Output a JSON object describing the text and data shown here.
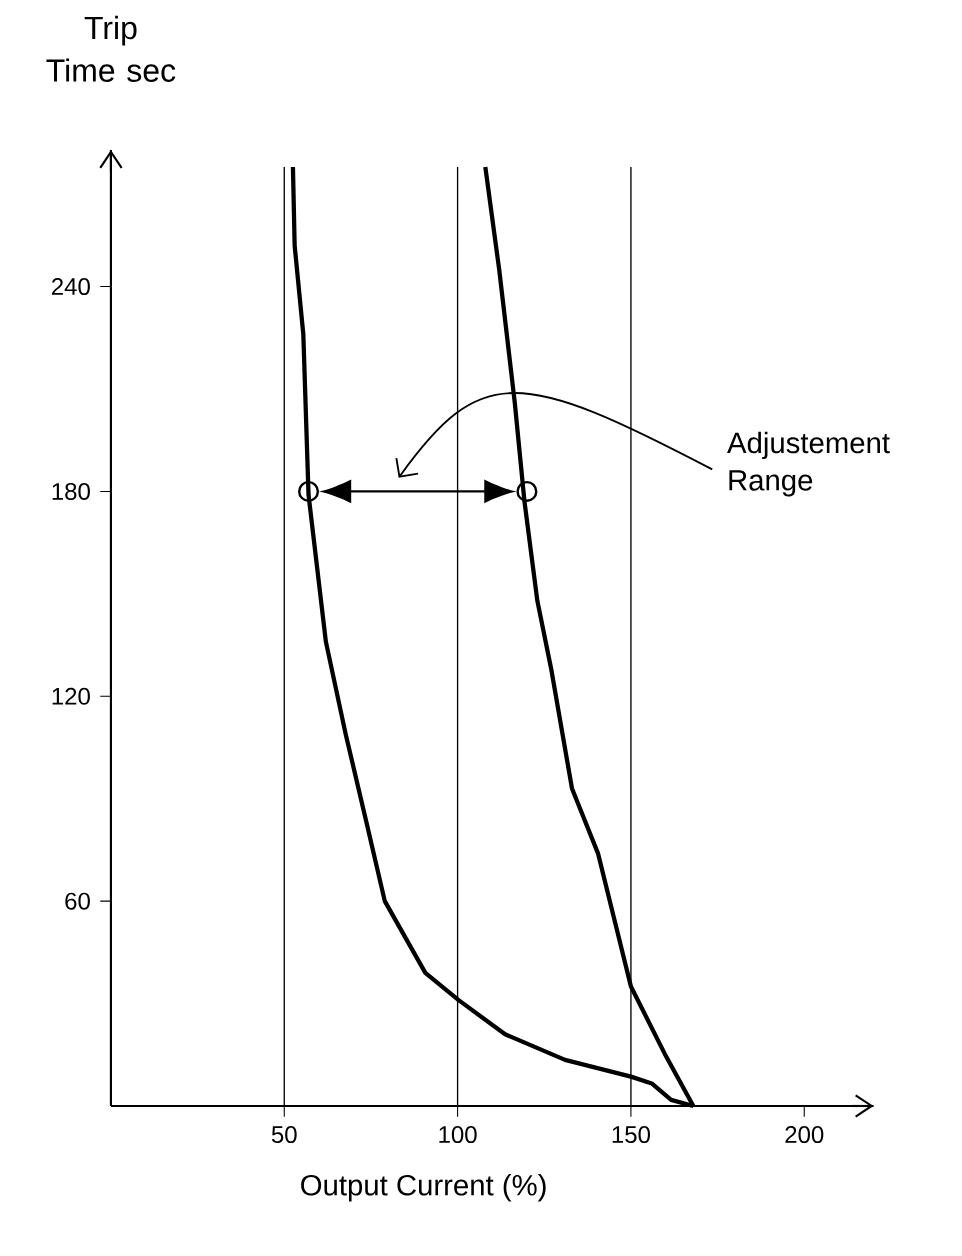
{
  "chart_data": {
    "type": "line",
    "ylabel": "Trip Time sec",
    "xlabel": "Output Current (%)",
    "xlim": [
      0,
      220
    ],
    "ylim": [
      0,
      280
    ],
    "xticks": [
      50,
      100,
      150,
      200
    ],
    "yticks": [
      60,
      120,
      180,
      240
    ],
    "series": [
      {
        "color": "#000000",
        "x": [
          52.5,
          53,
          55.5,
          57,
          62,
          67.7,
          73.5,
          79,
          90.7,
          100.3,
          113.7,
          131,
          150,
          156,
          161.6,
          168
        ],
        "values": [
          275,
          252,
          226,
          179,
          136,
          109,
          84,
          60,
          39,
          31,
          21,
          13.5,
          8.6,
          6.6,
          1.8,
          0
        ]
      },
      {
        "color": "#000000",
        "x": [
          108,
          112,
          116.5,
          119.3,
          123,
          127,
          133,
          140.5,
          150,
          159.7,
          168
        ],
        "values": [
          275,
          245,
          206,
          177,
          148,
          128,
          93,
          74,
          35,
          15.4,
          0
        ]
      },
      {
        "type": "scatter",
        "marker": "circle",
        "color": "#000000",
        "x": [
          57,
          120
        ],
        "values": [
          180,
          180
        ]
      }
    ],
    "line_style": "solid",
    "marker": "none",
    "ref_lines": [
      {
        "axis": "x",
        "value": 50,
        "color": "#000000"
      },
      {
        "axis": "x",
        "value": 100,
        "color": "#000000"
      },
      {
        "axis": "x",
        "value": 150,
        "color": "#000000"
      }
    ],
    "annotations": [
      "Adjustement Range"
    ]
  }
}
